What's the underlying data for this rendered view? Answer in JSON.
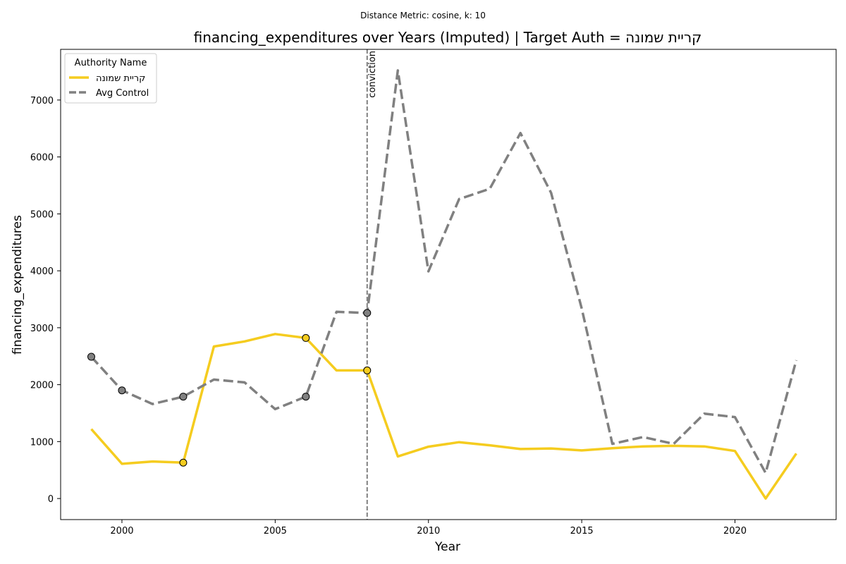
{
  "suptitle": "Distance Metric: cosine, k: 10",
  "colors": {
    "target": "#f5cc1f",
    "control": "#808080",
    "marker_edge": "#000000",
    "axes": "#000000",
    "vline": "#808080"
  },
  "chart_data": {
    "type": "line",
    "title": "financing_expenditures over Years (Imputed) | Target Auth = קריית שמונה",
    "xlabel": "Year",
    "ylabel": "financing_expenditures",
    "xlim": [
      1998,
      2023.3
    ],
    "ylim": [
      -370,
      7890
    ],
    "xticks": [
      2000,
      2005,
      2010,
      2015,
      2020
    ],
    "yticks": [
      0,
      1000,
      2000,
      3000,
      4000,
      5000,
      6000,
      7000
    ],
    "legend": {
      "title": "Authority Name",
      "placement": "top-left",
      "entries": [
        "קריית שמונה",
        "Avg Control"
      ]
    },
    "annotation": {
      "label": "conviction",
      "x": 2008
    },
    "series": [
      {
        "name": "קריית שמונה",
        "style": "solid",
        "x": [
          1999,
          2000,
          2001,
          2002,
          2003,
          2004,
          2005,
          2006,
          2007,
          2008,
          2009,
          2010,
          2011,
          2012,
          2013,
          2014,
          2015,
          2016,
          2017,
          2018,
          2019,
          2020,
          2021,
          2022
        ],
        "y": [
          1220,
          610,
          650,
          630,
          2670,
          2760,
          2890,
          2820,
          2250,
          2250,
          740,
          910,
          990,
          935,
          870,
          880,
          845,
          885,
          915,
          925,
          915,
          835,
          0,
          790
        ],
        "imputed_x": [
          2002,
          2006,
          2008
        ]
      },
      {
        "name": "Avg Control",
        "style": "dashed",
        "x": [
          1999,
          2000,
          2001,
          2002,
          2003,
          2004,
          2005,
          2006,
          2007,
          2008,
          2009,
          2010,
          2011,
          2012,
          2013,
          2014,
          2015,
          2016,
          2017,
          2018,
          2019,
          2020,
          2021,
          2022
        ],
        "y": [
          2490,
          1900,
          1660,
          1790,
          2090,
          2040,
          1570,
          1790,
          3280,
          3260,
          7520,
          3990,
          5260,
          5440,
          6420,
          5370,
          3340,
          960,
          1080,
          960,
          1490,
          1430,
          450,
          2430
        ],
        "imputed_x": [
          1999,
          2000,
          2002,
          2006,
          2008
        ]
      }
    ]
  }
}
